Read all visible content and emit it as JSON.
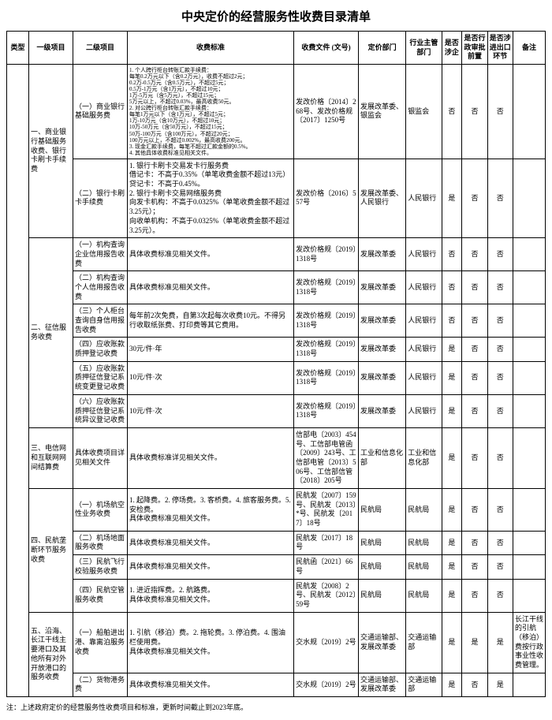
{
  "title": "中央定价的经营服务性收费目录清单",
  "headers": {
    "type": "类型",
    "l1": "一级项目",
    "l2": "二级项目",
    "std": "收费标准",
    "doc": "收费文件\n(文号)",
    "dept": "定价部门",
    "ind": "行业主管部门",
    "q1": "是否涉企",
    "q2": "是否行政审批前置",
    "q3": "是否涉进出口环节",
    "note": "备注"
  },
  "rows": [
    {
      "l1": "一、商业银行基础服务收费、银行卡刷卡手续费",
      "l1_span": 2,
      "l2": "（一）商业银行基础服务费",
      "std_tiny": true,
      "std": "1. 个人跨行柜台转账汇款手续费：\n每笔0.2万元以下（含0.2万元），收费不超过2元；\n0.2万-0.5万元（含0.5万元），不超过5元；\n0.5万-1万元（含1万元），不超过10元；\n1万-5万元（含5万元），不超过15元；\n5万元以上，不超过0.03%，最高收费50元。\n2. 对公跨行柜台转账汇款手续费：\n每笔1万元以下（含1万元），不超过5元；\n1万-10万元（含10万元），不超过10元；\n10万-50万元（含50万元），不超过15元；\n50万-100万元（含100万元），不超过20元；\n100万元以上，不超过0.002%，最高收费200元。\n3. 现金汇款手续费，每笔不超过汇款金额的0.5%。\n4. 其他具体收费标准见相关文件。",
      "doc": "发改价格〔2014〕268号、发改价格规〔2017〕1250号",
      "dept": "发展改革委、银监会",
      "ind": "银监会",
      "q1": "否",
      "q2": "否",
      "q3": "否",
      "note": ""
    },
    {
      "l2": "（二）银行卡刷卡手续费",
      "std": "1. 银行卡刷卡交易发卡行服务费\n借记卡：不高于0.35%（单笔收费金额不超过13元）\n贷记卡：不高于0.45%。\n2. 银行卡刷卡交易网络服务费\n向发卡机构：不高于0.0325%（单笔收费金额不超过3.25元）；\n向收单机构：不高于0.0325%（单笔收费金额不超过3.25元）。",
      "doc": "发改价格〔2016〕557号",
      "dept": "发展改革委、人民银行",
      "ind": "人民银行",
      "q1": "是",
      "q2": "否",
      "q3": "否",
      "note": ""
    },
    {
      "l1": "二、征信服务收费",
      "l1_span": 6,
      "l2": "（一）机构查询企业信用报告收费",
      "std": "具体收费标准见相关文件。",
      "doc": "发改价格规〔2019〕1318号",
      "dept": "发展改革委",
      "ind": "人民银行",
      "q1": "否",
      "q2": "否",
      "q3": "否",
      "note": ""
    },
    {
      "l2": "（二）机构查询个人信用报告收费",
      "std": "具体收费标准见相关文件。",
      "doc": "发改价格规〔2019〕1318号",
      "dept": "发展改革委",
      "ind": "人民银行",
      "q1": "否",
      "q2": "否",
      "q3": "否",
      "note": ""
    },
    {
      "l2": "（三）个人柜台查询自身信用报告收费",
      "std": "每年前2次免费，自第3次起每次收费10元。不得另行收取纸张费、打印费等其它费用。",
      "doc": "发改价格规〔2019〕1318号",
      "dept": "发展改革委",
      "ind": "人民银行",
      "q1": "否",
      "q2": "否",
      "q3": "否",
      "note": ""
    },
    {
      "l2": "（四）应收账款质押登记收费",
      "std": "30元/件·年",
      "doc": "发改价格规〔2019〕1318号",
      "dept": "发展改革委",
      "ind": "人民银行",
      "q1": "是",
      "q2": "否",
      "q3": "否",
      "note": ""
    },
    {
      "l2": "（五）应收账款质押征信登记系统变更登记收费",
      "std": "10元/件·次",
      "doc": "发改价格规〔2019〕1318号",
      "dept": "发展改革委",
      "ind": "人民银行",
      "q1": "是",
      "q2": "否",
      "q3": "否",
      "note": ""
    },
    {
      "l2": "（六）应收账款质押征信登记系统异议登记收费",
      "std": "10元/件·次",
      "doc": "发改价格规〔2019〕1318号",
      "dept": "发展改革委",
      "ind": "人民银行",
      "q1": "是",
      "q2": "否",
      "q3": "否",
      "note": ""
    },
    {
      "l1": "三、电信网和互联网网间结算费",
      "l1_span": 1,
      "l2": "具体收费项目详见相关文件",
      "std": "具体收费标准详见相关文件。",
      "doc": "信部电〔2003〕454号、工信部电管函〔2009〕243号、工信部电管〔2013〕506号、工信部信管〔2018〕205号",
      "dept": "工业和信息化部",
      "ind": "工业和信息化部",
      "q1": "是",
      "q2": "否",
      "q3": "否",
      "note": ""
    },
    {
      "l1": "四、民航垄断环节服务收费",
      "l1_span": 4,
      "l2": "（一）机场航空性业务收费",
      "std": "1. 起降费。2. 停场费。3. 客桥费。4. 旅客服务费。5. 安检费。\n具体收费标准见相关文件。",
      "doc": "民航发〔2007〕159号、民航发〔2013〕*号、民航发〔2017〕18号",
      "dept": "民航局",
      "ind": "民航局",
      "q1": "是",
      "q2": "否",
      "q3": "否",
      "note": ""
    },
    {
      "l2": "（二）机场地面服务收费",
      "std": "具体收费标准见相关文件。",
      "doc": "民航发〔2017〕18号",
      "dept": "民航局",
      "ind": "民航局",
      "q1": "是",
      "q2": "否",
      "q3": "否",
      "note": ""
    },
    {
      "l2": "（三）民航飞行校验服务收费",
      "std": "具体收费标准见相关文件。",
      "doc": "民航函〔2021〕66号",
      "dept": "民航局",
      "ind": "民航局",
      "q1": "是",
      "q2": "否",
      "q3": "否",
      "note": ""
    },
    {
      "l2": "（四）民航空管服务收费",
      "std": "1. 进近指挥费。2. 航路费。\n具体收费标准见相关文件。",
      "doc": "民航发〔2008〕2号、民航发〔2012〕59号",
      "dept": "民航局",
      "ind": "民航局",
      "q1": "是",
      "q2": "否",
      "q3": "否",
      "note": ""
    },
    {
      "l1": "五、沿海、长江干线主要港口及其他所有对外开放港口的服务收费",
      "l1_span": 2,
      "l2": "（一）船舶进出港、靠离泊服务收费",
      "std": "1. 引航（移泊）费。2. 拖轮费。3. 停泊费。4. 围油栏使用费。\n具体收费标准见相关文件。",
      "doc": "交水规〔2019〕2号",
      "dept": "交通运输部、发展改革委",
      "ind": "交通运输部",
      "q1": "是",
      "q2": "是",
      "q3": "是",
      "note": "长江干线的引航（移泊）费按行政事业性收费管理。"
    },
    {
      "l2": "（二）货物港务费",
      "std": "具体收费标准见相关文件。",
      "doc": "交水规〔2019〕2号",
      "dept": "交通运输部、发展改革委",
      "ind": "交通运输部",
      "q1": "是",
      "q2": "否",
      "q3": "是",
      "note": ""
    }
  ],
  "footnote": "注：上述政府定价的经营服务性收费项目和标准，更新时间截止到2023年底。"
}
